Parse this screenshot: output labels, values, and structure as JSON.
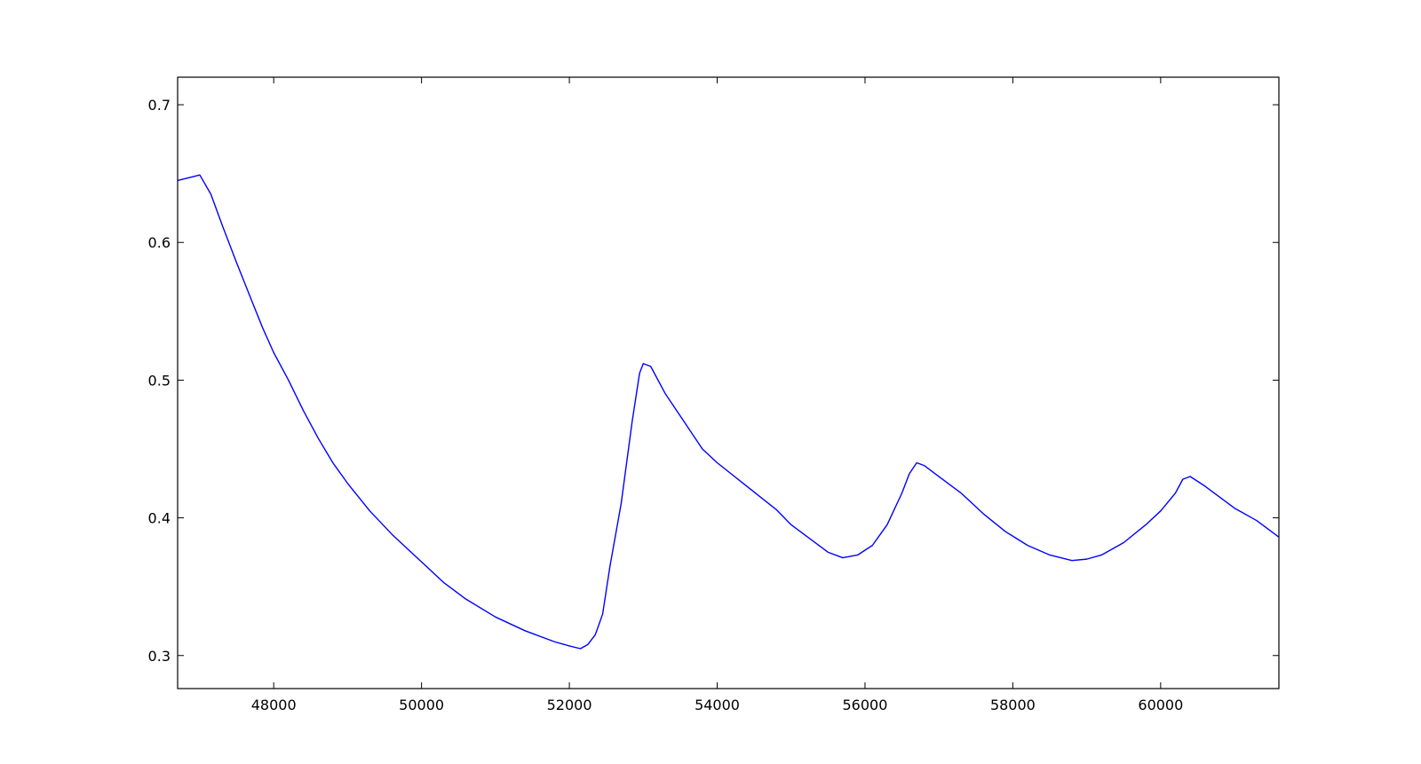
{
  "chart_data": {
    "type": "line",
    "title": "",
    "xlabel": "",
    "ylabel": "",
    "xlim": [
      46700,
      61600
    ],
    "ylim": [
      0.276,
      0.72
    ],
    "grid": false,
    "legend": "none",
    "x_ticks": [
      48000,
      50000,
      52000,
      54000,
      56000,
      58000,
      60000
    ],
    "x_tick_labels": [
      "48000",
      "50000",
      "52000",
      "54000",
      "56000",
      "58000",
      "60000"
    ],
    "y_ticks": [
      0.3,
      0.4,
      0.5,
      0.6,
      0.7
    ],
    "y_tick_labels": [
      "0.3",
      "0.4",
      "0.5",
      "0.6",
      "0.7"
    ],
    "line_color": "#0000ff",
    "series": [
      {
        "x": [
          46700,
          47000,
          47150,
          47300,
          47500,
          47700,
          47850,
          48000,
          48200,
          48400,
          48600,
          48800,
          49000,
          49300,
          49600,
          50000,
          50300,
          50600,
          51000,
          51400,
          51800,
          52000,
          52150,
          52250,
          52350,
          52450,
          52550,
          52700,
          52850,
          52950,
          53000,
          53100,
          53300,
          53600,
          53800,
          54000,
          54400,
          54800,
          55000,
          55300,
          55500,
          55700,
          55900,
          56100,
          56300,
          56500,
          56600,
          56700,
          56800,
          57000,
          57300,
          57600,
          57900,
          58200,
          58500,
          58800,
          59000,
          59200,
          59500,
          59800,
          60000,
          60200,
          60300,
          60400,
          60600,
          60800,
          61000,
          61300,
          61600
        ],
        "y": [
          0.645,
          0.649,
          0.635,
          0.613,
          0.585,
          0.558,
          0.538,
          0.52,
          0.5,
          0.478,
          0.458,
          0.44,
          0.425,
          0.405,
          0.388,
          0.368,
          0.353,
          0.341,
          0.328,
          0.318,
          0.31,
          0.307,
          0.305,
          0.308,
          0.315,
          0.33,
          0.365,
          0.41,
          0.47,
          0.505,
          0.512,
          0.51,
          0.49,
          0.466,
          0.45,
          0.44,
          0.423,
          0.406,
          0.395,
          0.383,
          0.375,
          0.371,
          0.373,
          0.38,
          0.395,
          0.418,
          0.432,
          0.44,
          0.438,
          0.43,
          0.418,
          0.403,
          0.39,
          0.38,
          0.373,
          0.369,
          0.37,
          0.373,
          0.382,
          0.395,
          0.405,
          0.418,
          0.428,
          0.43,
          0.423,
          0.415,
          0.407,
          0.398,
          0.386
        ]
      }
    ]
  }
}
